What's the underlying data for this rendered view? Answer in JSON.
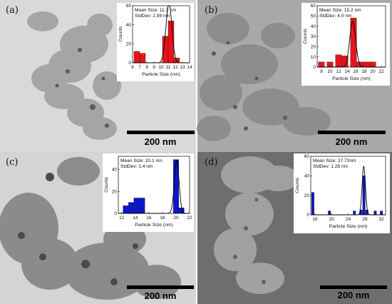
{
  "chart_data": [
    {
      "type": "bar",
      "panel": "(a)",
      "stats": [
        "Mean Size: 11.1 nm",
        "StdDev: 2.98 nm"
      ],
      "xlabel": "Particle Size (nm)",
      "ylabel": "Counts",
      "xlim": [
        6,
        14
      ],
      "ylim": [
        0,
        60
      ],
      "xticks": [
        6,
        7,
        8,
        9,
        10,
        11,
        12,
        13,
        14
      ],
      "yticks": [
        0,
        20,
        40,
        60
      ],
      "bar_width": 0.8,
      "bars": [
        {
          "x": 6.6,
          "y": 12
        },
        {
          "x": 7.4,
          "y": 10
        },
        {
          "x": 10.6,
          "y": 28
        },
        {
          "x": 11.4,
          "y": 44
        },
        {
          "x": 12.2,
          "y": 5
        }
      ],
      "fit": {
        "mean": 11.1,
        "sigma": 0.42,
        "peak": 62
      },
      "bar_color": "#e8141b",
      "scale_bar": "200 nm"
    },
    {
      "type": "bar",
      "panel": "(b)",
      "stats": [
        "Mean Size: 15.2 nm",
        "StdDev: 4.0 nm"
      ],
      "xlabel": "Particle Size (nm)",
      "ylabel": "Counts",
      "xlim": [
        7,
        23
      ],
      "ylim": [
        0,
        60
      ],
      "xticks": [
        8,
        10,
        12,
        14,
        16,
        18,
        20,
        22
      ],
      "yticks": [
        0,
        10,
        20,
        30,
        40,
        50,
        60
      ],
      "bar_width": 1.4,
      "bars": [
        {
          "x": 8,
          "y": 5
        },
        {
          "x": 10,
          "y": 5
        },
        {
          "x": 12,
          "y": 12
        },
        {
          "x": 13.5,
          "y": 11
        },
        {
          "x": 15.5,
          "y": 48
        },
        {
          "x": 17,
          "y": 5
        },
        {
          "x": 18.5,
          "y": 5
        },
        {
          "x": 20,
          "y": 5
        }
      ],
      "fit": {
        "mean": 15.3,
        "sigma": 0.7,
        "peak": 45
      },
      "bar_color": "#e8141b",
      "scale_bar": "200 nm"
    },
    {
      "type": "bar",
      "panel": "(c)",
      "stats": [
        "Mean Size: 20.1 nm",
        "StdDev: 1.4 nm"
      ],
      "xlabel": "Particle Size (nm)",
      "ylabel": "Counts",
      "xlim": [
        11.5,
        22
      ],
      "ylim": [
        0,
        52
      ],
      "xticks": [
        12,
        14,
        16,
        18,
        20,
        22
      ],
      "yticks": [
        0,
        20,
        40
      ],
      "bar_width": 0.8,
      "bars": [
        {
          "x": 12.6,
          "y": 7
        },
        {
          "x": 13.4,
          "y": 10
        },
        {
          "x": 14.2,
          "y": 14
        },
        {
          "x": 15.0,
          "y": 14
        },
        {
          "x": 20.0,
          "y": 49
        },
        {
          "x": 20.8,
          "y": 5
        }
      ],
      "fit": {
        "mean": 20.1,
        "sigma": 0.35,
        "peak": 48
      },
      "bar_color": "#0b16c9",
      "scale_bar": "200 nm"
    },
    {
      "type": "bar",
      "panel": "(d)",
      "stats": [
        "Mean Size: 27.73nm",
        "StdDev: 1.28 nm"
      ],
      "xlabel": "Particle Size (nm)",
      "ylabel": "Counts",
      "xlim": [
        15,
        33
      ],
      "ylim": [
        0,
        60
      ],
      "xticks": [
        16,
        20,
        24,
        28,
        32
      ],
      "yticks": [
        0,
        20,
        40,
        60
      ],
      "bar_width": 0.6,
      "bars": [
        {
          "x": 15.5,
          "y": 23
        },
        {
          "x": 19.5,
          "y": 4
        },
        {
          "x": 25.5,
          "y": 4
        },
        {
          "x": 27.1,
          "y": 5
        },
        {
          "x": 27.8,
          "y": 40
        },
        {
          "x": 28.5,
          "y": 5
        },
        {
          "x": 30.5,
          "y": 4
        },
        {
          "x": 32.0,
          "y": 4
        }
      ],
      "fit": {
        "mean": 27.75,
        "sigma": 0.4,
        "peak": 50
      },
      "bar_color": "#0b16c9",
      "scale_bar": "200 nm"
    }
  ],
  "colors": {
    "panel_a_bg": "#d9d9d9",
    "panel_b_bg": "#a9a9a9",
    "panel_c_bg": "#d4d4d4",
    "panel_d_bg": "#6e6e6e",
    "particle_light": "#9c9c9c",
    "particle_dark": "#5a5a5a",
    "fit_line": "#000000"
  }
}
